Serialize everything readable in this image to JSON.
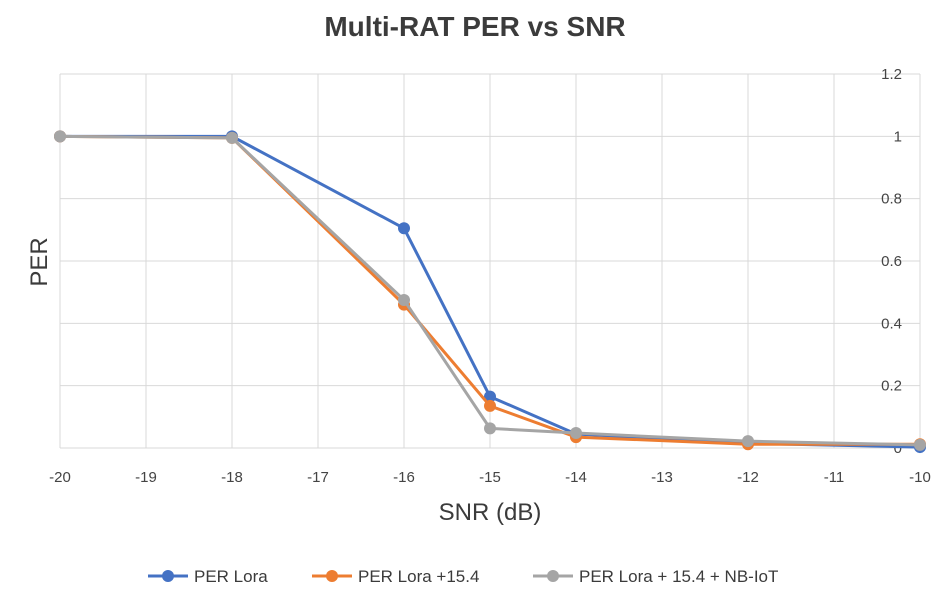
{
  "chart_data": {
    "type": "line",
    "title": "Multi-RAT PER vs SNR",
    "xlabel": "SNR (dB)",
    "ylabel": "PER",
    "xlim": [
      -20,
      -10
    ],
    "ylim": [
      0,
      1.2
    ],
    "x_ticks": [
      "-20",
      "-19",
      "-18",
      "-17",
      "-16",
      "-15",
      "-14",
      "-13",
      "-12",
      "-11",
      "-10"
    ],
    "y_ticks": [
      "0",
      "0.2",
      "0.4",
      "0.6",
      "0.8",
      "1",
      "1.2"
    ],
    "y_axis_side": "right",
    "grid": true,
    "legend_position": "bottom",
    "series": [
      {
        "name": "PER Lora",
        "color": "#4472c4",
        "x": [
          -20,
          -18,
          -16,
          -15,
          -14,
          -12,
          -10
        ],
        "y": [
          1.0,
          1.0,
          0.705,
          0.165,
          0.045,
          0.015,
          0.003
        ]
      },
      {
        "name": "PER Lora +15.4",
        "color": "#ed7d31",
        "x": [
          -20,
          -18,
          -16,
          -15,
          -14,
          -12,
          -10
        ],
        "y": [
          1.0,
          0.995,
          0.46,
          0.135,
          0.035,
          0.012,
          0.012
        ]
      },
      {
        "name": "PER Lora + 15.4 + NB-IoT",
        "color": "#a5a5a5",
        "x": [
          -20,
          -18,
          -16,
          -15,
          -14,
          -12,
          -10
        ],
        "y": [
          1.0,
          0.995,
          0.475,
          0.063,
          0.048,
          0.022,
          0.01
        ]
      }
    ]
  }
}
